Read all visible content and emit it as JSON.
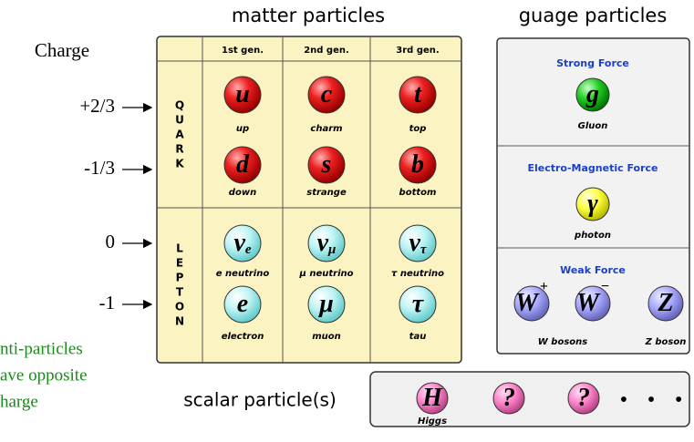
{
  "left": {
    "heading": "Charge",
    "charges": [
      "+2/3",
      "-1/3",
      "0",
      "-1"
    ],
    "note": [
      "nti-particles",
      "ave opposite",
      "harge"
    ]
  },
  "matter": {
    "title": "matter particles",
    "generations": [
      "1st gen.",
      "2nd gen.",
      "3rd gen."
    ],
    "groups": [
      {
        "label": [
          "Q",
          "U",
          "A",
          "R",
          "K"
        ],
        "rows": [
          [
            {
              "symbol": "u",
              "name": "up"
            },
            {
              "symbol": "c",
              "name": "charm"
            },
            {
              "symbol": "t",
              "name": "top"
            }
          ],
          [
            {
              "symbol": "d",
              "name": "down"
            },
            {
              "symbol": "s",
              "name": "strange"
            },
            {
              "symbol": "b",
              "name": "bottom"
            }
          ]
        ]
      },
      {
        "label": [
          "L",
          "E",
          "P",
          "T",
          "O",
          "N"
        ],
        "rows": [
          [
            {
              "symbol": "ν",
              "sub": "e",
              "name": "e neutrino"
            },
            {
              "symbol": "ν",
              "sub": "μ",
              "name": "μ neutrino"
            },
            {
              "symbol": "ν",
              "sub": "τ",
              "name": "τ neutrino"
            }
          ],
          [
            {
              "symbol": "e",
              "name": "electron"
            },
            {
              "symbol": "μ",
              "name": "muon"
            },
            {
              "symbol": "τ",
              "name": "tau"
            }
          ]
        ]
      }
    ]
  },
  "gauge": {
    "title": "guage particles",
    "forces": [
      {
        "title": "Strong Force",
        "particles": [
          {
            "symbol": "g",
            "name": "Gluon"
          }
        ]
      },
      {
        "title": "Electro-Magnetic Force",
        "particles": [
          {
            "symbol": "γ",
            "name": "photon"
          }
        ]
      },
      {
        "title": "Weak Force",
        "particles": [
          {
            "symbol": "W",
            "sup": "+"
          },
          {
            "symbol": "W",
            "sup": "−"
          },
          {
            "symbol": "Z"
          }
        ],
        "names": [
          "W bosons",
          "Z boson"
        ]
      }
    ]
  },
  "scalar": {
    "title": "scalar particle(s)",
    "particles": [
      {
        "symbol": "H",
        "name": "Higgs"
      },
      {
        "symbol": "?"
      },
      {
        "symbol": "?"
      }
    ],
    "more": "• • •"
  }
}
